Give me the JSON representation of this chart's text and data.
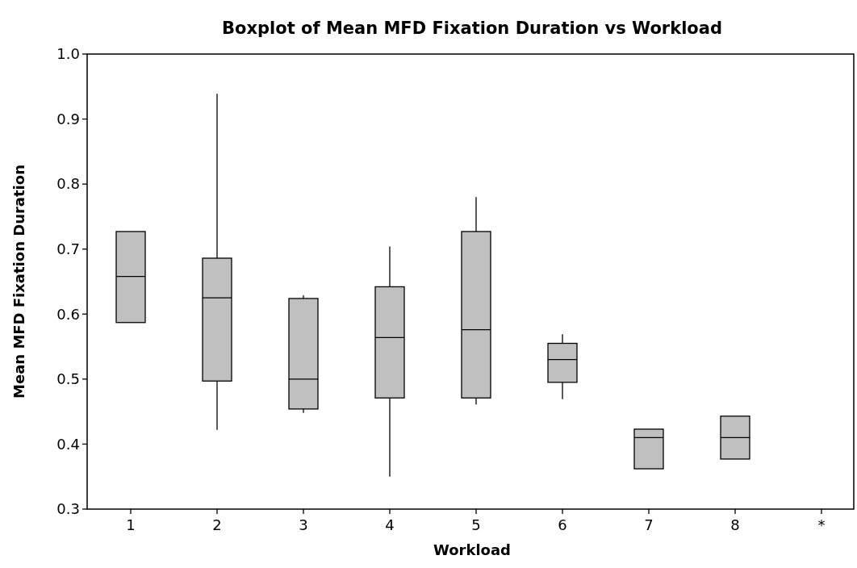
{
  "chart_data": {
    "type": "box",
    "title": "Boxplot of Mean MFD Fixation Duration vs Workload",
    "xlabel": "Workload",
    "ylabel": "Mean MFD Fixation Duration",
    "categories": [
      "1",
      "2",
      "3",
      "4",
      "5",
      "6",
      "7",
      "8",
      "*"
    ],
    "boxes": [
      {
        "low": 0.587,
        "q1": 0.587,
        "median": 0.658,
        "q3": 0.727,
        "high": 0.727
      },
      {
        "low": 0.422,
        "q1": 0.497,
        "median": 0.625,
        "q3": 0.686,
        "high": 0.939
      },
      {
        "low": 0.448,
        "q1": 0.454,
        "median": 0.5,
        "q3": 0.624,
        "high": 0.629
      },
      {
        "low": 0.35,
        "q1": 0.471,
        "median": 0.564,
        "q3": 0.642,
        "high": 0.704
      },
      {
        "low": 0.461,
        "q1": 0.471,
        "median": 0.576,
        "q3": 0.727,
        "high": 0.78
      },
      {
        "low": 0.469,
        "q1": 0.495,
        "median": 0.53,
        "q3": 0.555,
        "high": 0.569
      },
      {
        "low": 0.362,
        "q1": 0.362,
        "median": 0.41,
        "q3": 0.423,
        "high": 0.423
      },
      {
        "low": 0.377,
        "q1": 0.377,
        "median": 0.41,
        "q3": 0.443,
        "high": 0.443
      },
      null
    ],
    "color": "#c0c0c0",
    "ylim": [
      0.3,
      1.0
    ],
    "yticks": [
      {
        "value": 0.3,
        "label": "0.3"
      },
      {
        "value": 0.4,
        "label": "0.4"
      },
      0.5,
      0.6,
      0.7,
      0.8,
      0.9,
      {
        "value": 1.0,
        "label": "1.0"
      }
    ],
    "grid": false
  }
}
